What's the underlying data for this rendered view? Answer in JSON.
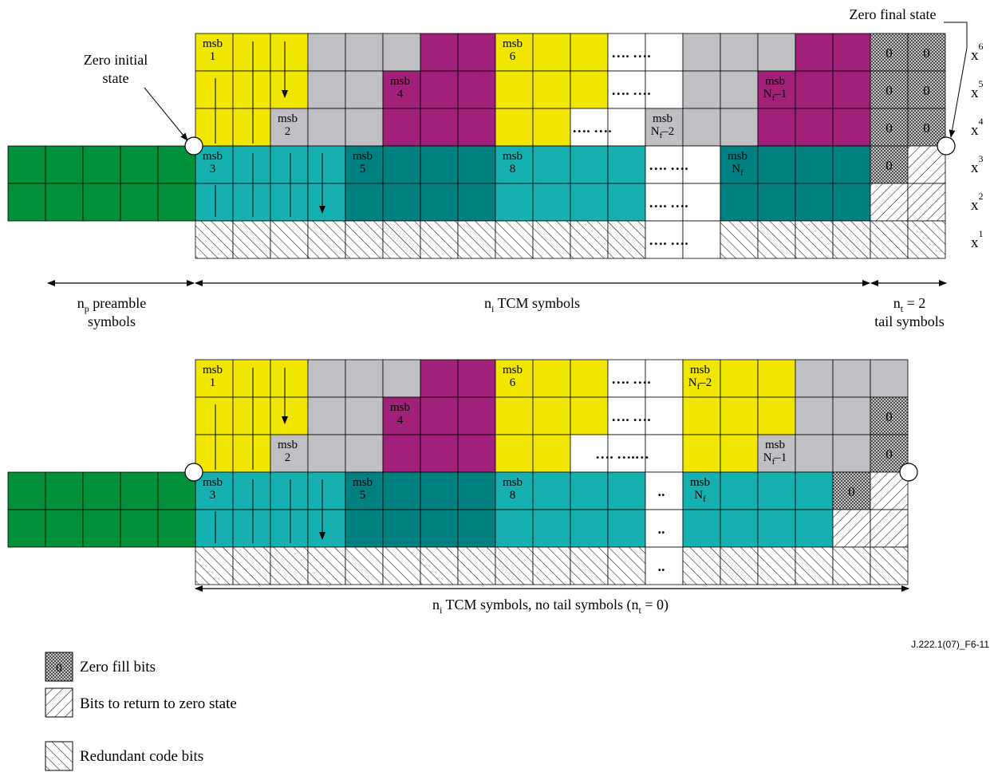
{
  "top": {
    "zero_initial_state": [
      "Zero initial",
      "state"
    ],
    "zero_final_state": "Zero final state",
    "row_labels": [
      "x6",
      "x5",
      "x4",
      "x3",
      "x2",
      "x1"
    ],
    "preamble_label": [
      "np preamble",
      "symbols"
    ],
    "tcm_label": "ni TCM symbols",
    "tail_label": [
      "nt = 2",
      "tail symbols"
    ],
    "msb_labels": [
      "msb 1",
      "msb 6",
      "msb 4",
      "msb Nf–1",
      "msb 2",
      "msb Nf–2",
      "msb 3",
      "msb 5",
      "msb 8",
      "msb Nf"
    ],
    "zero_fill": "0",
    "dots": "…. …."
  },
  "bottom": {
    "tcm_label": "ni TCM symbols, no tail symbols (nt = 0)",
    "msb_labels": [
      "msb 1",
      "msb 6",
      "msb Nf–2",
      "msb 4",
      "msb 2",
      "msb Nf–1",
      "msb 3",
      "msb 5",
      "msb 8",
      "msb Nf"
    ],
    "zero_fill": "0",
    "dots_short": ".."
  },
  "legend": {
    "zero_fill": "Zero fill bits",
    "return_zero": "Bits to return to zero state",
    "redundant": "Redundant code bits"
  },
  "figure_id": "J.222.1(07)_F6-11",
  "colors": {
    "yellow": "#f0e600",
    "grey": "#c0c0c4",
    "magenta": "#a0207a",
    "teal_light": "#17b0b0",
    "teal_dark": "#008080",
    "green": "#00913a",
    "white": "#ffffff"
  }
}
